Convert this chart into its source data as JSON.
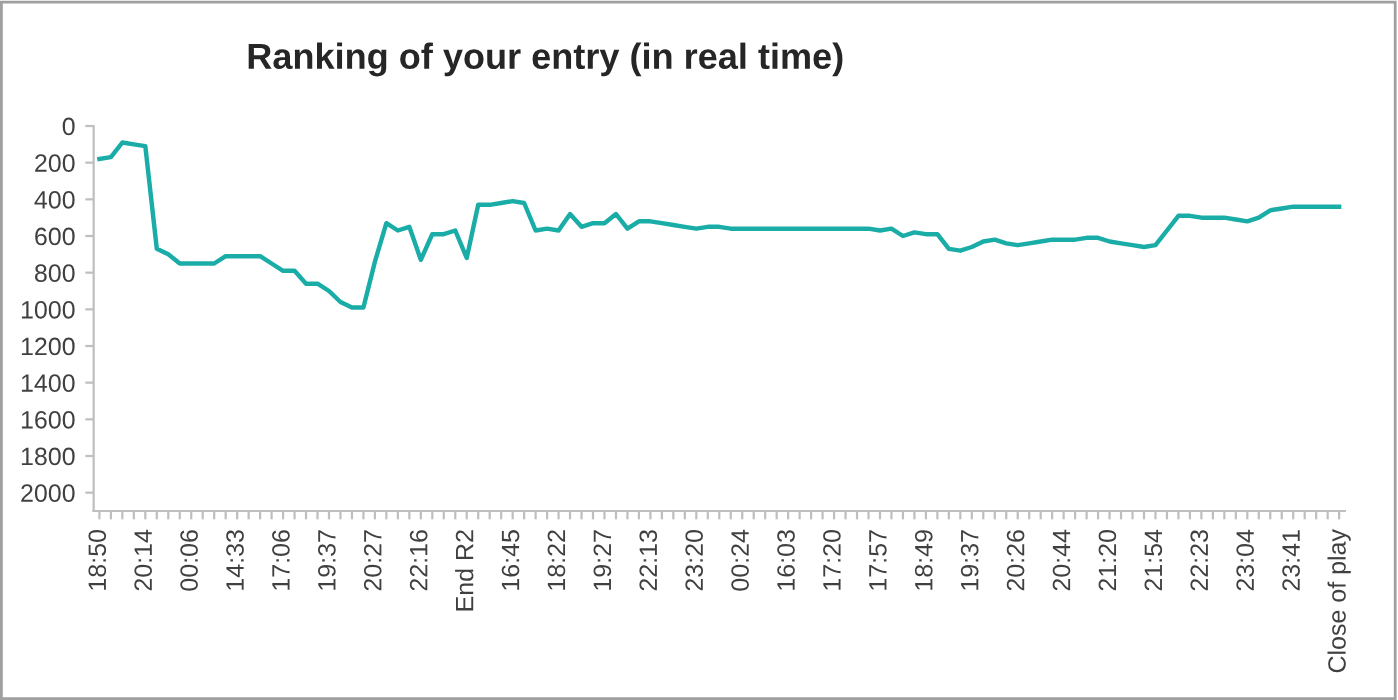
{
  "chart_data": {
    "type": "line",
    "title": "Ranking of your entry (in real time)",
    "categories": [
      "18:50",
      null,
      null,
      null,
      "20:14",
      null,
      null,
      null,
      "00:06",
      null,
      null,
      null,
      "14:33",
      null,
      null,
      null,
      "17:06",
      null,
      null,
      null,
      "19:37",
      null,
      null,
      null,
      "20:27",
      null,
      null,
      null,
      "22:16",
      null,
      null,
      null,
      "End R2",
      null,
      null,
      null,
      "16:45",
      null,
      null,
      null,
      "18:22",
      null,
      null,
      null,
      "19:27",
      null,
      null,
      null,
      "22:13",
      null,
      null,
      null,
      "23:20",
      null,
      null,
      null,
      "00:24",
      null,
      null,
      null,
      "16:03",
      null,
      null,
      null,
      "17:20",
      null,
      null,
      null,
      "17:57",
      null,
      null,
      null,
      "18:49",
      null,
      null,
      null,
      "19:37",
      null,
      null,
      null,
      "20:26",
      null,
      null,
      null,
      "20:44",
      null,
      null,
      null,
      "21:20",
      null,
      null,
      null,
      "21:54",
      null,
      null,
      null,
      "22:23",
      null,
      null,
      null,
      "23:04",
      null,
      null,
      null,
      "23:41",
      null,
      null,
      null,
      "Close of play"
    ],
    "series": [
      {
        "color": "#1aada8",
        "values": [
          180,
          170,
          90,
          100,
          110,
          670,
          700,
          750,
          750,
          750,
          750,
          710,
          710,
          710,
          710,
          750,
          790,
          790,
          860,
          860,
          900,
          960,
          990,
          990,
          740,
          530,
          570,
          550,
          730,
          590,
          590,
          570,
          720,
          430,
          430,
          420,
          410,
          420,
          570,
          560,
          570,
          480,
          550,
          530,
          530,
          480,
          560,
          520,
          520,
          530,
          540,
          550,
          560,
          550,
          550,
          560,
          560,
          560,
          560,
          560,
          560,
          560,
          560,
          560,
          560,
          560,
          560,
          560,
          570,
          560,
          600,
          580,
          590,
          590,
          670,
          680,
          660,
          630,
          620,
          640,
          650,
          640,
          630,
          620,
          620,
          620,
          610,
          610,
          630,
          640,
          650,
          660,
          650,
          570,
          490,
          490,
          500,
          500,
          500,
          510,
          520,
          500,
          460,
          450,
          440,
          440,
          440,
          440,
          440
        ]
      }
    ],
    "ylim": [
      2100,
      0
    ],
    "yticks": [
      0,
      200,
      400,
      600,
      800,
      1000,
      1200,
      1400,
      1600,
      1800,
      2000
    ],
    "grid": false,
    "legend": false,
    "marker": "none",
    "line_style": "solid"
  }
}
